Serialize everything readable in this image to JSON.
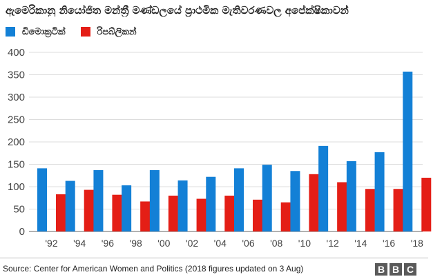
{
  "chart_data": {
    "type": "bar",
    "title": "ඇමෙරිකානු නියෝජිත මන්ත්‍රී මණ්ඩලයේ ප්‍රාථමික මැතිවරණවල අපේක්ෂිකාවන්",
    "categories": [
      "'92",
      "'94",
      "'96",
      "'98",
      "'00",
      "'02",
      "'04",
      "'06",
      "'08",
      "'10",
      "'12",
      "'14",
      "'16",
      "'18"
    ],
    "series": [
      {
        "name": "ඩිමොක්‍රටික්",
        "color": "#1380d6",
        "values": [
          141,
          113,
          137,
          103,
          137,
          114,
          122,
          141,
          149,
          135,
          191,
          157,
          177,
          357
        ]
      },
      {
        "name": "රිපබ්ලිකන්",
        "color": "#e41e16",
        "values": [
          83,
          93,
          82,
          67,
          80,
          73,
          80,
          71,
          65,
          128,
          110,
          95,
          95,
          120
        ]
      }
    ],
    "ylim": [
      0,
      400
    ],
    "yticks": [
      0,
      50,
      100,
      150,
      200,
      250,
      300,
      350,
      400
    ],
    "grid": true,
    "legend": "top-left",
    "xlabel": "",
    "ylabel": ""
  },
  "footer": {
    "source": "Source: Center for American Women and Politics (2018 figures updated on 3 Aug)",
    "logo_letters": [
      "B",
      "B",
      "C"
    ]
  }
}
